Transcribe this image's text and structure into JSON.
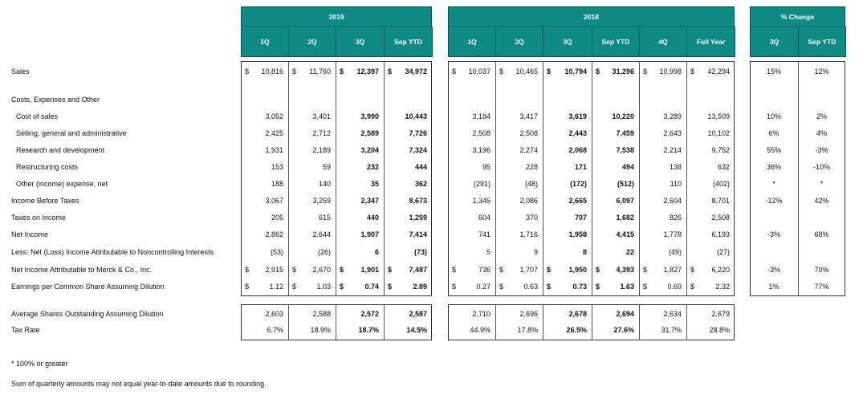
{
  "header": {
    "groups": [
      {
        "title": "2019",
        "columns": [
          "1Q",
          "2Q",
          "3Q",
          "Sep YTD"
        ]
      },
      {
        "title": "2018",
        "columns": [
          "1Q",
          "2Q",
          "3Q",
          "Sep YTD",
          "4Q",
          "Full Year"
        ]
      },
      {
        "title": "% Change",
        "columns": [
          "3Q",
          "Sep YTD"
        ]
      }
    ]
  },
  "currency_symbol": "$",
  "main_rows": [
    {
      "label": "Sales",
      "dollar": true,
      "values": [
        "10,816",
        "11,760",
        "12,397",
        "34,972",
        "10,037",
        "10,465",
        "10,794",
        "31,296",
        "10,998",
        "42,294",
        "15%",
        "12%"
      ]
    },
    {
      "label": "Costs, Expenses and Other",
      "values": []
    },
    {
      "label": "Cost of sales",
      "indent": true,
      "values": [
        "3,052",
        "3,401",
        "3,990",
        "10,443",
        "3,184",
        "3,417",
        "3,619",
        "10,220",
        "3,289",
        "13,509",
        "10%",
        "2%"
      ]
    },
    {
      "label": "Selling, general and administrative",
      "indent": true,
      "values": [
        "2,425",
        "2,712",
        "2,589",
        "7,726",
        "2,508",
        "2,508",
        "2,443",
        "7,459",
        "2,643",
        "10,102",
        "6%",
        "4%"
      ]
    },
    {
      "label": "Research and development",
      "indent": true,
      "values": [
        "1,931",
        "2,189",
        "3,204",
        "7,324",
        "3,196",
        "2,274",
        "2,068",
        "7,538",
        "2,214",
        "9,752",
        "55%",
        "-3%"
      ]
    },
    {
      "label": "Restructuring costs",
      "indent": true,
      "values": [
        "153",
        "59",
        "232",
        "444",
        "95",
        "228",
        "171",
        "494",
        "138",
        "632",
        "36%",
        "-10%"
      ]
    },
    {
      "label": "Other (income) expense, net",
      "indent": true,
      "values": [
        "188",
        "140",
        "35",
        "362",
        "(291)",
        "(48)",
        "(172)",
        "(512)",
        "110",
        "(402)",
        "*",
        "*"
      ]
    },
    {
      "label": "Income Before Taxes",
      "values": [
        "3,067",
        "3,259",
        "2,347",
        "8,673",
        "1,345",
        "2,086",
        "2,665",
        "6,097",
        "2,604",
        "8,701",
        "-12%",
        "42%"
      ]
    },
    {
      "label": "Taxes on Income",
      "values": [
        "205",
        "615",
        "440",
        "1,259",
        "604",
        "370",
        "707",
        "1,682",
        "826",
        "2,508"
      ]
    },
    {
      "label": "Net Income",
      "values": [
        "2,862",
        "2,644",
        "1,907",
        "7,414",
        "741",
        "1,716",
        "1,958",
        "4,415",
        "1,778",
        "6,193",
        "-3%",
        "68%"
      ]
    },
    {
      "label": "Less: Net (Loss) Income Attributable to Noncontrolling Interests",
      "values": [
        "(53)",
        "(26)",
        "6",
        "(73)",
        "5",
        "9",
        "8",
        "22",
        "(49)",
        "(27)"
      ]
    },
    {
      "label": "Net Income Attributable to Merck & Co., Inc.",
      "dollar": true,
      "values": [
        "2,915",
        "2,670",
        "1,901",
        "7,487",
        "736",
        "1,707",
        "1,950",
        "4,393",
        "1,827",
        "6,220",
        "-3%",
        "70%"
      ]
    },
    {
      "label": "Earnings per Common Share Assuming Dilution",
      "dollar": true,
      "values": [
        "1.12",
        "1.03",
        "0.74",
        "2.89",
        "0.27",
        "0.63",
        "0.73",
        "1.63",
        "0.69",
        "2.32",
        "1%",
        "77%"
      ]
    }
  ],
  "summary_rows": [
    {
      "label": "Average Shares Outstanding Assuming Dilution",
      "values": [
        "2,603",
        "2,588",
        "2,572",
        "2,587",
        "2,710",
        "2,696",
        "2,678",
        "2,694",
        "2,634",
        "2,679"
      ]
    },
    {
      "label": "Tax Rate",
      "values": [
        "6.7%",
        "18.9%",
        "18.7%",
        "14.5%",
        "44.9%",
        "17.8%",
        "26.5%",
        "27.6%",
        "31.7%",
        "28.8%"
      ]
    }
  ],
  "footnotes": [
    "* 100% or greater",
    "Sum of quarterly amounts may not equal year-to-date amounts due to rounding."
  ]
}
